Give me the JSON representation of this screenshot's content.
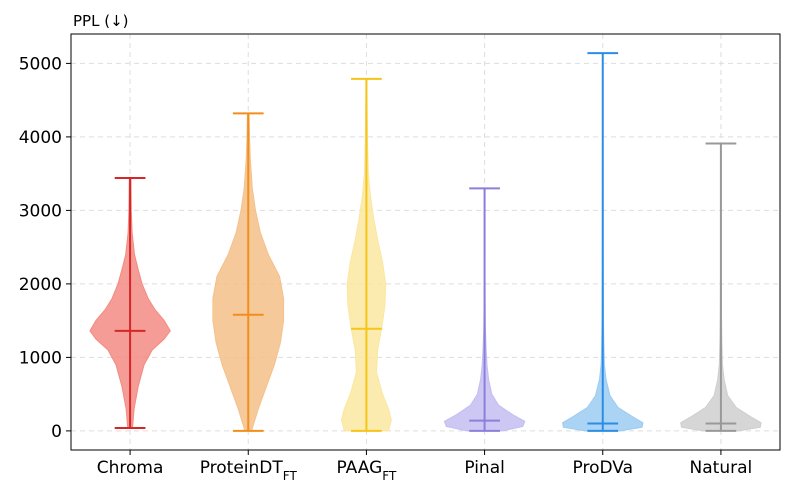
{
  "chart_data": {
    "type": "violin",
    "title": "",
    "ylabel": "PPL (↓)",
    "xlabel": "",
    "ylim": [
      -260,
      5400
    ],
    "yticks": [
      0,
      1000,
      2000,
      3000,
      4000,
      5000
    ],
    "grid": true,
    "categories": [
      {
        "base": "Chroma",
        "sub": ""
      },
      {
        "base": "ProteinDT",
        "sub": "FT"
      },
      {
        "base": "PAAG",
        "sub": "FT"
      },
      {
        "base": "Pinal",
        "sub": ""
      },
      {
        "base": "ProDVa",
        "sub": ""
      },
      {
        "base": "Natural",
        "sub": ""
      }
    ],
    "series": [
      {
        "min": 40,
        "max": 3440,
        "median": 1360,
        "color": "#d62728",
        "fill": "#f28b82",
        "density": [
          [
            40,
            0.06
          ],
          [
            300,
            0.1
          ],
          [
            600,
            0.2
          ],
          [
            900,
            0.35
          ],
          [
            1100,
            0.55
          ],
          [
            1250,
            0.85
          ],
          [
            1360,
            1.0
          ],
          [
            1500,
            0.85
          ],
          [
            1650,
            0.62
          ],
          [
            1800,
            0.45
          ],
          [
            2000,
            0.3
          ],
          [
            2200,
            0.2
          ],
          [
            2400,
            0.11
          ],
          [
            2700,
            0.05
          ],
          [
            3000,
            0.03
          ],
          [
            3440,
            0.02
          ]
        ]
      },
      {
        "min": 0,
        "max": 4320,
        "median": 1580,
        "color": "#f28e1c",
        "fill": "#f5c08a",
        "density": [
          [
            0,
            0.08
          ],
          [
            300,
            0.25
          ],
          [
            600,
            0.45
          ],
          [
            900,
            0.65
          ],
          [
            1200,
            0.8
          ],
          [
            1500,
            0.88
          ],
          [
            1800,
            0.88
          ],
          [
            2100,
            0.78
          ],
          [
            2400,
            0.5
          ],
          [
            2700,
            0.3
          ],
          [
            3000,
            0.18
          ],
          [
            3300,
            0.1
          ],
          [
            3700,
            0.05
          ],
          [
            4000,
            0.03
          ],
          [
            4320,
            0.02
          ]
        ]
      },
      {
        "min": 0,
        "max": 4790,
        "median": 1390,
        "color": "#f5c518",
        "fill": "#fbe7a1",
        "density": [
          [
            0,
            0.55
          ],
          [
            150,
            0.62
          ],
          [
            300,
            0.55
          ],
          [
            500,
            0.4
          ],
          [
            800,
            0.25
          ],
          [
            1100,
            0.28
          ],
          [
            1400,
            0.38
          ],
          [
            1700,
            0.46
          ],
          [
            2000,
            0.48
          ],
          [
            2300,
            0.4
          ],
          [
            2600,
            0.28
          ],
          [
            2900,
            0.18
          ],
          [
            3200,
            0.1
          ],
          [
            3500,
            0.05
          ],
          [
            3900,
            0.03
          ],
          [
            4300,
            0.02
          ],
          [
            4790,
            0.01
          ]
        ]
      },
      {
        "min": 0,
        "max": 3300,
        "median": 140,
        "color": "#8b7fdc",
        "fill": "#c4bdf2",
        "density": [
          [
            0,
            0.45
          ],
          [
            60,
            0.95
          ],
          [
            130,
            1.0
          ],
          [
            220,
            0.7
          ],
          [
            350,
            0.35
          ],
          [
            500,
            0.18
          ],
          [
            700,
            0.1
          ],
          [
            900,
            0.06
          ],
          [
            1100,
            0.04
          ],
          [
            1400,
            0.02
          ],
          [
            1800,
            0.012
          ],
          [
            2400,
            0.008
          ],
          [
            3300,
            0.005
          ]
        ]
      },
      {
        "min": 0,
        "max": 5140,
        "median": 100,
        "color": "#2b8ee6",
        "fill": "#9ccbf2",
        "density": [
          [
            0,
            0.45
          ],
          [
            50,
            0.98
          ],
          [
            110,
            1.0
          ],
          [
            200,
            0.72
          ],
          [
            320,
            0.38
          ],
          [
            480,
            0.18
          ],
          [
            700,
            0.08
          ],
          [
            900,
            0.04
          ],
          [
            1200,
            0.025
          ],
          [
            1600,
            0.015
          ],
          [
            2200,
            0.01
          ],
          [
            3000,
            0.008
          ],
          [
            4000,
            0.006
          ],
          [
            5140,
            0.004
          ]
        ]
      },
      {
        "min": 0,
        "max": 3910,
        "median": 100,
        "color": "#999999",
        "fill": "#cfcfcf",
        "density": [
          [
            0,
            0.45
          ],
          [
            50,
            0.98
          ],
          [
            110,
            1.0
          ],
          [
            200,
            0.72
          ],
          [
            320,
            0.38
          ],
          [
            480,
            0.17
          ],
          [
            700,
            0.08
          ],
          [
            900,
            0.04
          ],
          [
            1200,
            0.025
          ],
          [
            1600,
            0.015
          ],
          [
            2200,
            0.01
          ],
          [
            3000,
            0.007
          ],
          [
            3910,
            0.005
          ]
        ]
      }
    ]
  }
}
